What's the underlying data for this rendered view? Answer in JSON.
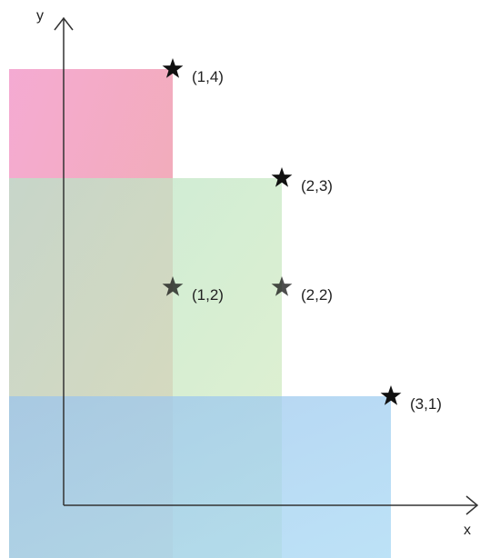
{
  "axes": {
    "x_label": "x",
    "y_label": "y",
    "color": "#333333"
  },
  "regions": [
    {
      "name": "red-region",
      "x_max": 1,
      "y_max": 4,
      "color_from": "#f4a6d0",
      "color_to": "#f0a8a8",
      "opacity": 0.95
    },
    {
      "name": "green-region",
      "x_max": 2,
      "y_max": 3,
      "color_from": "#b8e4c8",
      "color_to": "#d8ecc0",
      "opacity": 0.75
    },
    {
      "name": "blue-region",
      "x_max": 3,
      "y_max": 1,
      "color_from": "#9cc4ec",
      "color_to": "#a6d8f4",
      "opacity": 0.75
    }
  ],
  "points": [
    {
      "x": 1,
      "y": 4,
      "label": "(1,4)"
    },
    {
      "x": 2,
      "y": 3,
      "label": "(2,3)"
    },
    {
      "x": 1,
      "y": 2,
      "label": "(1,2)"
    },
    {
      "x": 2,
      "y": 2,
      "label": "(2,2)"
    },
    {
      "x": 3,
      "y": 1,
      "label": "(3,1)"
    }
  ],
  "star_color": "#111111"
}
